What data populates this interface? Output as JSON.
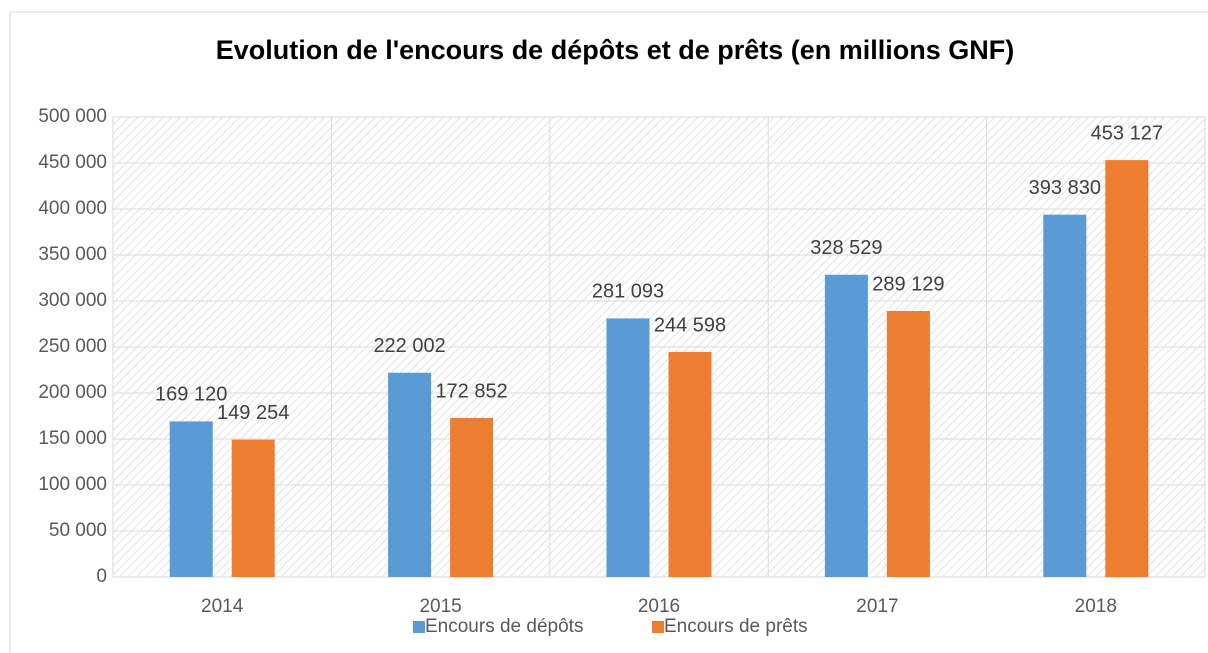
{
  "chart_data": {
    "type": "bar",
    "title": "Evolution de l'encours de dépôts et de prêts (en millions GNF)",
    "categories": [
      "2014",
      "2015",
      "2016",
      "2017",
      "2018"
    ],
    "series": [
      {
        "name": "Encours de dépôts",
        "color": "#5b9bd5",
        "values": [
          169120,
          222002,
          281093,
          328529,
          393830
        ],
        "value_labels": [
          "169 120",
          "222 002",
          "281 093",
          "328 529",
          "393 830"
        ]
      },
      {
        "name": "Encours de prêts",
        "color": "#ed7d31",
        "values": [
          149254,
          172852,
          244598,
          289129,
          453127
        ],
        "value_labels": [
          "149 254",
          "172 852",
          "244 598",
          "289 129",
          "453 127"
        ]
      }
    ],
    "ylim": [
      0,
      500000
    ],
    "yticks": [
      0,
      {
        "value": 50000,
        "label": "50 000"
      },
      {
        "value": 100000,
        "label": "100 000"
      },
      {
        "value": 150000,
        "label": "150 000"
      },
      {
        "value": 200000,
        "label": "200 000"
      },
      {
        "value": 250000,
        "label": "250 000"
      },
      {
        "value": 300000,
        "label": "300 000"
      },
      {
        "value": 350000,
        "label": "350 000"
      },
      {
        "value": 400000,
        "label": "400 000"
      },
      {
        "value": 450000,
        "label": "450 000"
      },
      {
        "value": 500000,
        "label": "500 000"
      }
    ],
    "grid": true,
    "legend": "bottom"
  }
}
